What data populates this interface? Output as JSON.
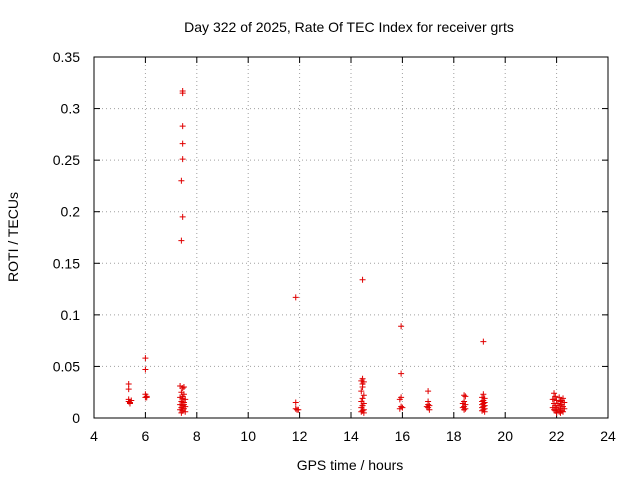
{
  "chart_data": {
    "type": "scatter",
    "title": "Day 322 of 2025, Rate Of TEC Index for receiver grts",
    "xlabel": "GPS time / hours",
    "ylabel": "ROTI / TECUs",
    "xlim": [
      4,
      24
    ],
    "ylim": [
      0,
      0.35
    ],
    "xticks": [
      "4",
      "6",
      "8",
      "10",
      "12",
      "14",
      "16",
      "18",
      "20",
      "22",
      "24"
    ],
    "yticks": [
      "0",
      "0.05",
      "0.1",
      "0.15",
      "0.2",
      "0.25",
      "0.3",
      "0.35"
    ],
    "grid": true,
    "legend": "none",
    "marker": "+",
    "color": "#e00000",
    "series": [
      {
        "points": [
          [
            5.35,
            0.033
          ],
          [
            5.35,
            0.028
          ],
          [
            5.35,
            0.018
          ],
          [
            5.35,
            0.016
          ],
          [
            5.4,
            0.015
          ],
          [
            5.4,
            0.014
          ],
          [
            5.45,
            0.017
          ],
          [
            6.0,
            0.058
          ],
          [
            6.0,
            0.047
          ],
          [
            6.0,
            0.023
          ],
          [
            6.0,
            0.02
          ],
          [
            6.05,
            0.021
          ],
          [
            6.05,
            0.02
          ],
          [
            7.45,
            0.317
          ],
          [
            7.45,
            0.315
          ],
          [
            7.45,
            0.283
          ],
          [
            7.45,
            0.266
          ],
          [
            7.45,
            0.251
          ],
          [
            7.4,
            0.23
          ],
          [
            7.45,
            0.195
          ],
          [
            7.4,
            0.172
          ],
          [
            7.35,
            0.031
          ],
          [
            7.45,
            0.029
          ],
          [
            7.5,
            0.03
          ],
          [
            7.4,
            0.025
          ],
          [
            7.5,
            0.023
          ],
          [
            7.35,
            0.02
          ],
          [
            7.45,
            0.019
          ],
          [
            7.55,
            0.018
          ],
          [
            7.4,
            0.016
          ],
          [
            7.5,
            0.015
          ],
          [
            7.35,
            0.013
          ],
          [
            7.45,
            0.012
          ],
          [
            7.55,
            0.011
          ],
          [
            7.4,
            0.01
          ],
          [
            7.5,
            0.009
          ],
          [
            7.35,
            0.008
          ],
          [
            7.45,
            0.007
          ],
          [
            7.55,
            0.006
          ],
          [
            7.4,
            0.005
          ],
          [
            7.5,
            0.013
          ],
          [
            7.45,
            0.021
          ],
          [
            11.85,
            0.117
          ],
          [
            11.85,
            0.015
          ],
          [
            11.85,
            0.009
          ],
          [
            11.9,
            0.008
          ],
          [
            11.95,
            0.008
          ],
          [
            14.45,
            0.134
          ],
          [
            14.45,
            0.038
          ],
          [
            14.4,
            0.036
          ],
          [
            14.5,
            0.035
          ],
          [
            14.45,
            0.033
          ],
          [
            14.45,
            0.03
          ],
          [
            14.4,
            0.026
          ],
          [
            14.5,
            0.022
          ],
          [
            14.45,
            0.019
          ],
          [
            14.4,
            0.016
          ],
          [
            14.5,
            0.014
          ],
          [
            14.45,
            0.012
          ],
          [
            14.4,
            0.01
          ],
          [
            14.5,
            0.008
          ],
          [
            14.45,
            0.007
          ],
          [
            14.4,
            0.006
          ],
          [
            14.5,
            0.005
          ],
          [
            15.95,
            0.089
          ],
          [
            15.95,
            0.043
          ],
          [
            15.95,
            0.02
          ],
          [
            15.9,
            0.018
          ],
          [
            15.95,
            0.011
          ],
          [
            16.0,
            0.01
          ],
          [
            15.9,
            0.009
          ],
          [
            17.0,
            0.026
          ],
          [
            17.0,
            0.016
          ],
          [
            17.0,
            0.013
          ],
          [
            17.05,
            0.012
          ],
          [
            16.95,
            0.011
          ],
          [
            17.0,
            0.01
          ],
          [
            17.05,
            0.008
          ],
          [
            18.4,
            0.022
          ],
          [
            18.45,
            0.021
          ],
          [
            18.4,
            0.016
          ],
          [
            18.35,
            0.014
          ],
          [
            18.45,
            0.013
          ],
          [
            18.4,
            0.011
          ],
          [
            18.35,
            0.01
          ],
          [
            18.45,
            0.009
          ],
          [
            18.4,
            0.008
          ],
          [
            19.15,
            0.074
          ],
          [
            19.15,
            0.023
          ],
          [
            19.1,
            0.02
          ],
          [
            19.2,
            0.019
          ],
          [
            19.15,
            0.017
          ],
          [
            19.1,
            0.016
          ],
          [
            19.2,
            0.015
          ],
          [
            19.15,
            0.014
          ],
          [
            19.1,
            0.013
          ],
          [
            19.2,
            0.012
          ],
          [
            19.15,
            0.011
          ],
          [
            19.1,
            0.01
          ],
          [
            19.2,
            0.009
          ],
          [
            19.15,
            0.008
          ],
          [
            19.1,
            0.007
          ],
          [
            19.2,
            0.006
          ],
          [
            21.9,
            0.024
          ],
          [
            21.95,
            0.021
          ],
          [
            22.1,
            0.02
          ],
          [
            22.25,
            0.019
          ],
          [
            21.85,
            0.018
          ],
          [
            22.0,
            0.017
          ],
          [
            22.15,
            0.016
          ],
          [
            22.3,
            0.015
          ],
          [
            21.9,
            0.014
          ],
          [
            22.05,
            0.014
          ],
          [
            22.2,
            0.013
          ],
          [
            21.95,
            0.012
          ],
          [
            22.1,
            0.012
          ],
          [
            22.25,
            0.011
          ],
          [
            21.85,
            0.01
          ],
          [
            22.0,
            0.01
          ],
          [
            22.15,
            0.009
          ],
          [
            22.3,
            0.009
          ],
          [
            21.9,
            0.008
          ],
          [
            22.05,
            0.008
          ],
          [
            22.2,
            0.007
          ],
          [
            21.95,
            0.007
          ],
          [
            22.1,
            0.006
          ],
          [
            22.25,
            0.006
          ],
          [
            22.0,
            0.005
          ],
          [
            22.15,
            0.005
          ],
          [
            21.9,
            0.018
          ],
          [
            22.2,
            0.017
          ]
        ]
      }
    ]
  }
}
